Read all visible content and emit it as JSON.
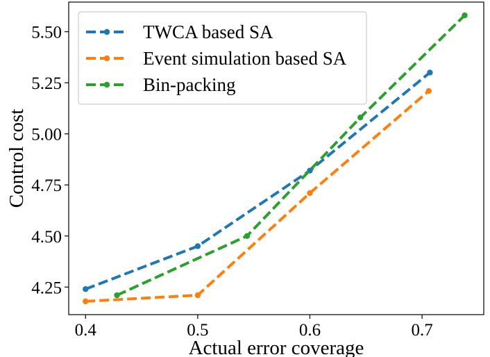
{
  "chart_data": {
    "type": "line",
    "title": "",
    "xlabel": "Actual error coverage",
    "ylabel": "Control cost",
    "xlim": [
      0.385,
      0.755
    ],
    "ylim": [
      4.115,
      5.645
    ],
    "xticks": [
      0.4,
      0.5,
      0.6,
      0.7
    ],
    "xtick_labels": [
      "0.4",
      "0.5",
      "0.6",
      "0.7"
    ],
    "yticks": [
      4.25,
      4.5,
      4.75,
      5.0,
      5.25,
      5.5
    ],
    "ytick_labels": [
      "4.25",
      "4.50",
      "4.75",
      "5.00",
      "5.25",
      "5.50"
    ],
    "grid": false,
    "legend_position": "top-left",
    "series": [
      {
        "name": "TWCA based SA",
        "color": "#1f77b4",
        "line_style": "dashed",
        "marker": "circle",
        "x": [
          0.4,
          0.5,
          0.6,
          0.707
        ],
        "y": [
          4.24,
          4.45,
          4.82,
          5.3
        ]
      },
      {
        "name": "Event simulation based SA",
        "color": "#ff7f0e",
        "line_style": "dashed",
        "marker": "circle",
        "x": [
          0.4,
          0.5,
          0.6,
          0.706
        ],
        "y": [
          4.18,
          4.21,
          4.71,
          5.21
        ]
      },
      {
        "name": "Bin-packing",
        "color": "#2ca02c",
        "line_style": "dashed",
        "marker": "circle",
        "x": [
          0.428,
          0.544,
          0.645,
          0.738
        ],
        "y": [
          4.21,
          4.5,
          5.08,
          5.58
        ]
      }
    ]
  }
}
